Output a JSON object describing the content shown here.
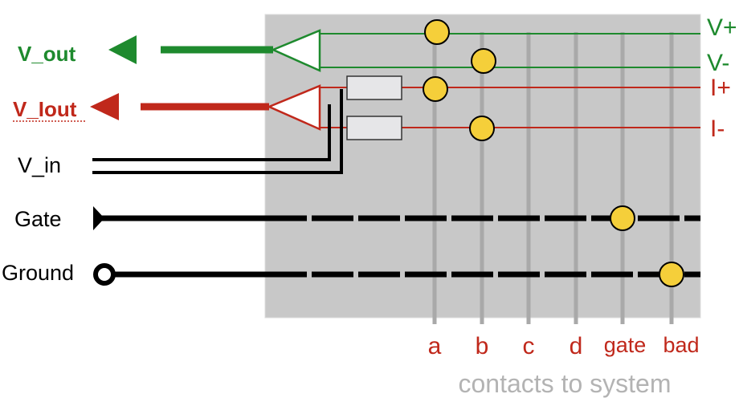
{
  "signals": {
    "v_out": "V_out",
    "v_iout": "V_Iout",
    "v_in": "V_in",
    "gate": "Gate",
    "ground": "Ground"
  },
  "lines": {
    "v_plus": "V+",
    "v_minus": "V-",
    "i_plus": "I+",
    "i_minus": "I-"
  },
  "contacts": [
    "a",
    "b",
    "c",
    "d",
    "gate",
    "bad"
  ],
  "caption": "contacts to system",
  "colors": {
    "green": "#1e8a2e",
    "red": "#c0281b",
    "black": "#000000",
    "panel": "#c8c8c8",
    "contact_line": "#a9a9a9",
    "dot": "#f5cf3a",
    "caption": "#b3b3b3"
  }
}
